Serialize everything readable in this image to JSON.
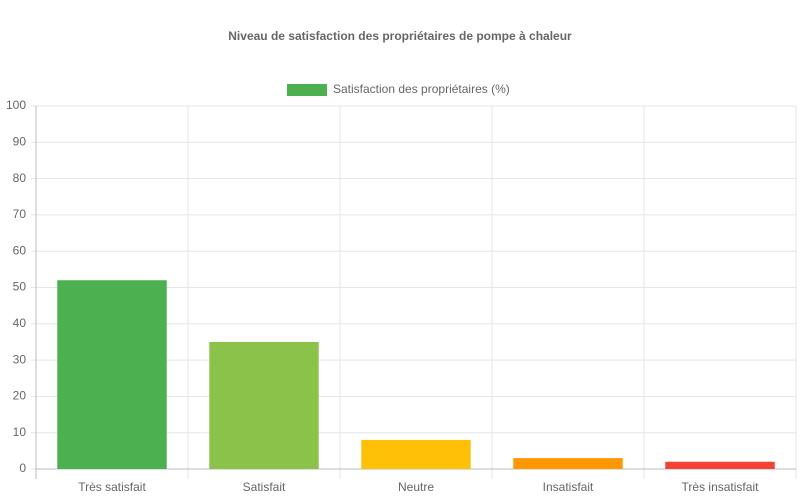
{
  "chart_data": {
    "type": "bar",
    "title": "Niveau de satisfaction des propriétaires de pompe à chaleur",
    "categories": [
      "Très satisfait",
      "Satisfait",
      "Neutre",
      "Insatisfait",
      "Très insatisfait"
    ],
    "series": [
      {
        "name": "Satisfaction des propriétaires (%)",
        "colors": [
          "#4caf50",
          "#8bc34a",
          "#ffc107",
          "#ff9800",
          "#f44336"
        ],
        "values": [
          52,
          35,
          8,
          3,
          2
        ]
      }
    ],
    "ylim": [
      0,
      100
    ],
    "yticks": [
      0,
      10,
      20,
      30,
      40,
      50,
      60,
      70,
      80,
      90,
      100
    ],
    "grid": true,
    "legend": "top"
  }
}
